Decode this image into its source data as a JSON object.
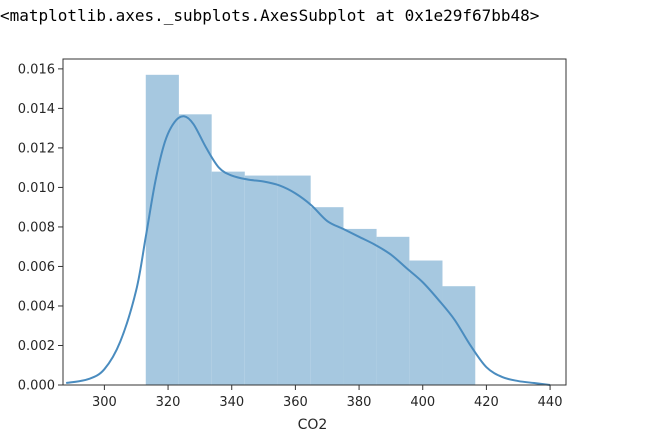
{
  "output_repr": "<matplotlib.axes._subplots.AxesSubplot at 0x1e29f67bb48>",
  "chart_data": {
    "type": "bar",
    "subtype": "histogram with kde",
    "xlabel": "CO2",
    "ylabel": "",
    "xlim": [
      287,
      445
    ],
    "ylim": [
      0,
      0.0165
    ],
    "xticks": [
      "300",
      "320",
      "340",
      "360",
      "380",
      "400",
      "420",
      "440"
    ],
    "yticks": [
      "0.000",
      "0.002",
      "0.004",
      "0.006",
      "0.008",
      "0.010",
      "0.012",
      "0.014",
      "0.016"
    ],
    "bins": [
      313,
      323.4,
      333.7,
      344.1,
      354.4,
      364.8,
      375.1,
      385.5,
      395.8,
      406.2,
      416.5
    ],
    "densities": [
      0.0157,
      0.0137,
      0.0108,
      0.0106,
      0.0106,
      0.009,
      0.0079,
      0.0075,
      0.0063,
      0.005
    ],
    "kde": {
      "x": [
        288,
        295,
        300,
        305,
        310,
        313,
        316,
        319,
        322,
        325,
        328,
        332,
        336,
        340,
        345,
        350,
        355,
        360,
        365,
        370,
        375,
        380,
        385,
        390,
        395,
        400,
        405,
        410,
        415,
        420,
        425,
        430,
        435,
        440
      ],
      "y": [
        0.0001,
        0.0003,
        0.0008,
        0.0022,
        0.0048,
        0.0075,
        0.0103,
        0.0123,
        0.0133,
        0.0136,
        0.0132,
        0.012,
        0.011,
        0.0106,
        0.0104,
        0.0103,
        0.0101,
        0.0097,
        0.0091,
        0.0083,
        0.0079,
        0.0075,
        0.0071,
        0.0066,
        0.0059,
        0.0052,
        0.0043,
        0.0033,
        0.002,
        0.0009,
        0.0004,
        0.0002,
        0.0001,
        0.0
      ]
    },
    "grid": false,
    "colors": {
      "bar": "#a6c8e0",
      "kde": "#4a8cbf",
      "axis": "#333333"
    }
  }
}
